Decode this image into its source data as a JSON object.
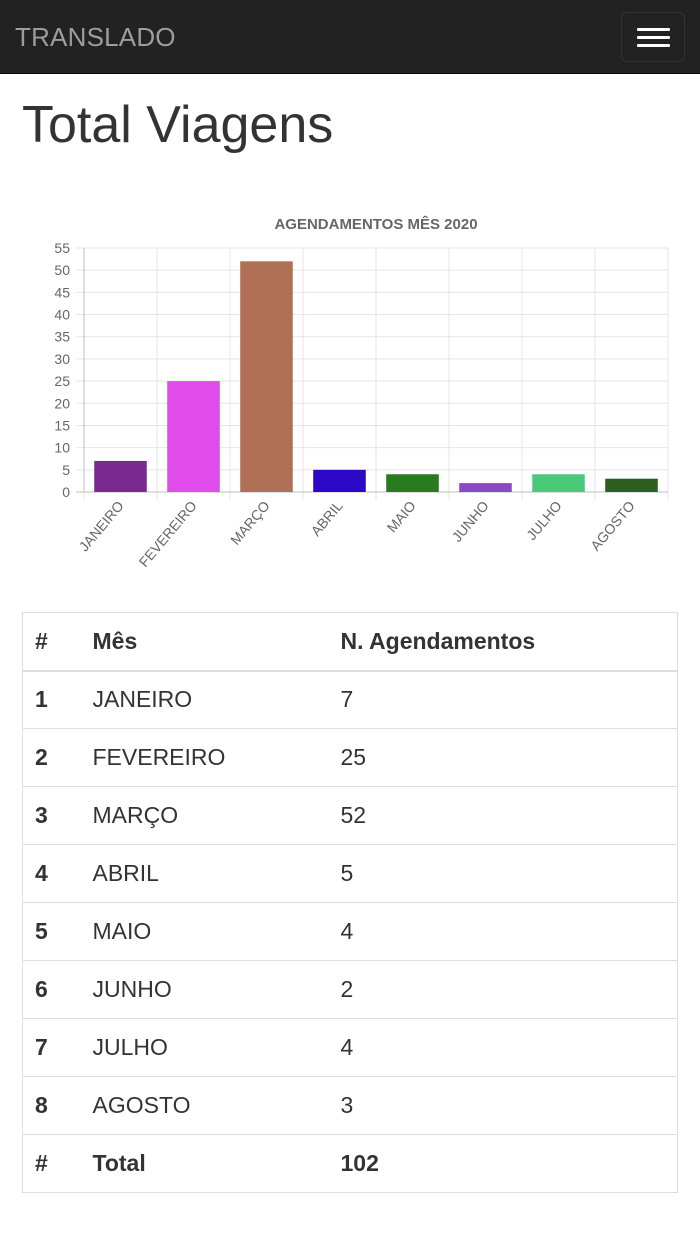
{
  "navbar": {
    "brand": "TRANSLADO",
    "toggle_icon": "hamburger-menu-icon"
  },
  "page": {
    "title": "Total Viagens"
  },
  "chart_data": {
    "type": "bar",
    "title": "AGENDAMENTOS MÊS 2020",
    "categories": [
      "JANEIRO",
      "FEVEREIRO",
      "MARÇO",
      "ABRIL",
      "MAIO",
      "JUNHO",
      "JULHO",
      "AGOSTO"
    ],
    "values": [
      7,
      25,
      52,
      5,
      4,
      2,
      4,
      3
    ],
    "colors": [
      "#7a2a8e",
      "#e04ce9",
      "#b07056",
      "#2c08c6",
      "#2a7a1f",
      "#8a48c4",
      "#4ac97a",
      "#2c5e22"
    ],
    "ylim": [
      0,
      55
    ],
    "yticks": [
      0,
      5,
      10,
      15,
      20,
      25,
      30,
      35,
      40,
      45,
      50,
      55
    ],
    "grid": true,
    "legend": "none"
  },
  "table": {
    "headers": [
      "#",
      "Mês",
      "N. Agendamentos"
    ],
    "rows": [
      [
        "1",
        "JANEIRO",
        "7"
      ],
      [
        "2",
        "FEVEREIRO",
        "25"
      ],
      [
        "3",
        "MARÇO",
        "52"
      ],
      [
        "4",
        "ABRIL",
        "5"
      ],
      [
        "5",
        "MAIO",
        "4"
      ],
      [
        "6",
        "JUNHO",
        "2"
      ],
      [
        "7",
        "JULHO",
        "4"
      ],
      [
        "8",
        "AGOSTO",
        "3"
      ]
    ],
    "footer": [
      "#",
      "Total",
      "102"
    ]
  }
}
